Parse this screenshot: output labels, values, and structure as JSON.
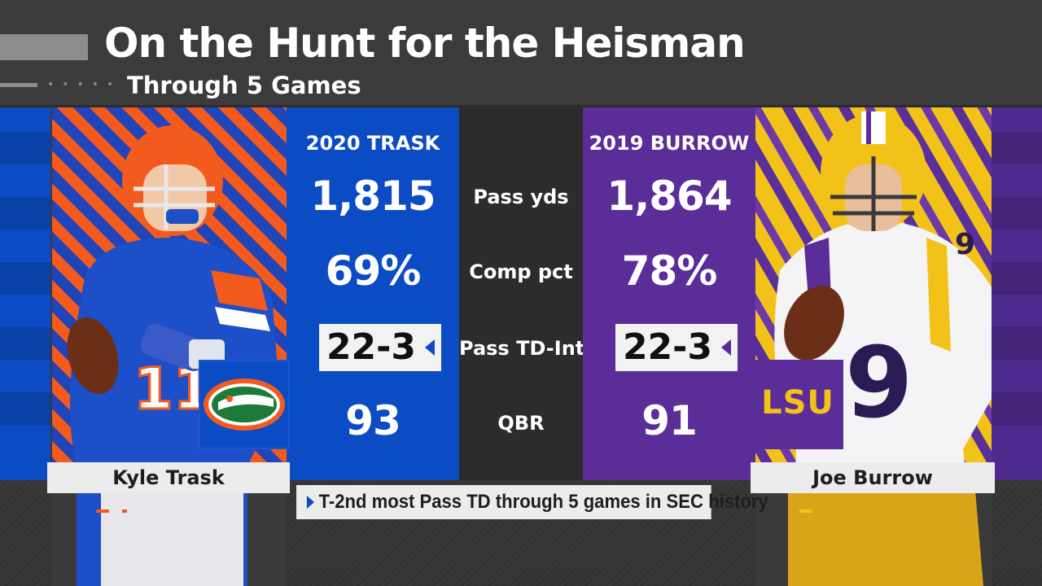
{
  "header": {
    "title": "On the Hunt for the Heisman",
    "subtitle": "Through 5 Games"
  },
  "colors": {
    "uf_blue": "#0b4cc4",
    "uf_orange": "#f25a1e",
    "lsu_purple": "#5a2d98",
    "lsu_gold": "#f3c219",
    "panel_dark": "#2c2c2c"
  },
  "left_player": {
    "name": "Kyle Trask",
    "column_header": "2020 TRASK",
    "pass_yds": "1,815",
    "comp_pct": "69%",
    "td_int": "22-3",
    "qbr": "93",
    "logo_icon": "florida-gator-logo"
  },
  "right_player": {
    "name": "Joe Burrow",
    "column_header": "2019 BURROW",
    "pass_yds": "1,864",
    "comp_pct": "78%",
    "td_int": "22-3",
    "qbr": "91",
    "logo_text": "LSU"
  },
  "stat_labels": {
    "pass_yds": "Pass yds",
    "comp_pct": "Comp pct",
    "td_int": "Pass TD-Int",
    "qbr": "QBR"
  },
  "footnote": {
    "text": "T-2nd most Pass TD through 5 games in SEC history"
  }
}
